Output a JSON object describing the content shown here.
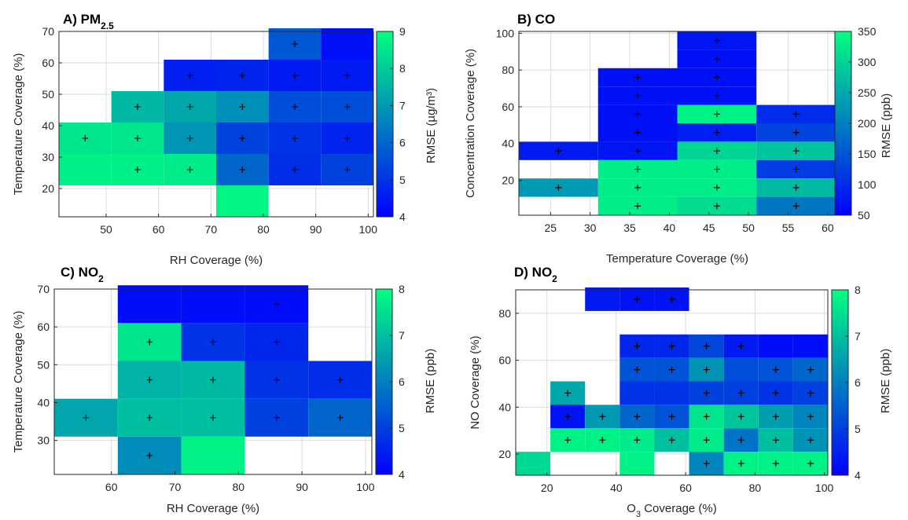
{
  "chart_data": [
    {
      "type": "heatmap",
      "title": "A) PM",
      "title_sub": "2.5",
      "xlabel": "RH Coverage (%)",
      "ylabel": "Temperature Coverage (%)",
      "colorbar_label": "RMSE (µg/m³)",
      "xlim": [
        41,
        101
      ],
      "ylim": [
        11,
        70
      ],
      "clim": [
        4,
        9
      ],
      "xticks": [
        "50",
        "60",
        "70",
        "80",
        "90",
        "100"
      ],
      "xtick_vals": [
        50,
        60,
        70,
        80,
        90,
        100
      ],
      "yticks": [
        "20",
        "30",
        "40",
        "50",
        "60",
        "70"
      ],
      "ytick_vals": [
        20,
        30,
        40,
        50,
        60,
        70
      ],
      "cticks": [
        "4",
        "5",
        "6",
        "7",
        "8",
        "9"
      ],
      "ctick_vals": [
        4,
        5,
        6,
        7,
        8,
        9
      ],
      "cells": [
        {
          "x": 46,
          "y": 36,
          "v": 8.5,
          "mark": true
        },
        {
          "x": 46,
          "y": 26,
          "v": 8.7,
          "mark": false
        },
        {
          "x": 56,
          "y": 46,
          "v": 7.6,
          "mark": true
        },
        {
          "x": 56,
          "y": 36,
          "v": 8.5,
          "mark": true
        },
        {
          "x": 56,
          "y": 26,
          "v": 8.7,
          "mark": true
        },
        {
          "x": 66,
          "y": 56,
          "v": 4.6,
          "mark": true
        },
        {
          "x": 66,
          "y": 46,
          "v": 7.3,
          "mark": true
        },
        {
          "x": 66,
          "y": 36,
          "v": 6.9,
          "mark": true
        },
        {
          "x": 66,
          "y": 26,
          "v": 8.6,
          "mark": true
        },
        {
          "x": 76,
          "y": 56,
          "v": 4.7,
          "mark": true
        },
        {
          "x": 76,
          "y": 46,
          "v": 6.8,
          "mark": true
        },
        {
          "x": 76,
          "y": 36,
          "v": 5.3,
          "mark": true
        },
        {
          "x": 76,
          "y": 26,
          "v": 6.0,
          "mark": true
        },
        {
          "x": 76,
          "y": 16,
          "v": 8.8,
          "mark": false
        },
        {
          "x": 86,
          "y": 66,
          "v": 5.7,
          "mark": true
        },
        {
          "x": 86,
          "y": 56,
          "v": 4.5,
          "mark": true
        },
        {
          "x": 86,
          "y": 46,
          "v": 5.5,
          "mark": true
        },
        {
          "x": 86,
          "y": 36,
          "v": 5.0,
          "mark": true
        },
        {
          "x": 86,
          "y": 26,
          "v": 4.9,
          "mark": true
        },
        {
          "x": 96,
          "y": 66,
          "v": 4.3,
          "mark": false
        },
        {
          "x": 96,
          "y": 56,
          "v": 4.5,
          "mark": true
        },
        {
          "x": 96,
          "y": 46,
          "v": 5.5,
          "mark": true
        },
        {
          "x": 96,
          "y": 36,
          "v": 4.7,
          "mark": true
        },
        {
          "x": 96,
          "y": 26,
          "v": 5.3,
          "mark": true
        }
      ]
    },
    {
      "type": "heatmap",
      "title": "B) CO",
      "title_sub": "",
      "xlabel": "Temperature Coverage (%)",
      "ylabel": "Concentration Coverage (%)",
      "colorbar_label": "RMSE (ppb)",
      "xlim": [
        21,
        61
      ],
      "ylim": [
        1,
        101
      ],
      "clim": [
        50,
        350
      ],
      "xticks": [
        "25",
        "30",
        "35",
        "40",
        "45",
        "50",
        "55",
        "60"
      ],
      "xtick_vals": [
        25,
        30,
        35,
        40,
        45,
        50,
        55,
        60
      ],
      "yticks": [
        "20",
        "40",
        "60",
        "80",
        "100"
      ],
      "ytick_vals": [
        20,
        40,
        60,
        80,
        100
      ],
      "cticks": [
        "50",
        "100",
        "150",
        "200",
        "250",
        "300",
        "350"
      ],
      "ctick_vals": [
        50,
        100,
        150,
        200,
        250,
        300,
        350
      ],
      "cells": [
        {
          "x": 26,
          "y": 36,
          "v": 80,
          "mark": true
        },
        {
          "x": 26,
          "y": 16,
          "v": 230,
          "mark": true
        },
        {
          "x": 36,
          "y": 76,
          "v": 70,
          "mark": true
        },
        {
          "x": 36,
          "y": 66,
          "v": 70,
          "mark": true
        },
        {
          "x": 36,
          "y": 56,
          "v": 70,
          "mark": true
        },
        {
          "x": 36,
          "y": 46,
          "v": 70,
          "mark": true
        },
        {
          "x": 36,
          "y": 36,
          "v": 75,
          "mark": true
        },
        {
          "x": 36,
          "y": 26,
          "v": 330,
          "mark": true
        },
        {
          "x": 36,
          "y": 16,
          "v": 330,
          "mark": true
        },
        {
          "x": 36,
          "y": 6,
          "v": 330,
          "mark": true
        },
        {
          "x": 46,
          "y": 96,
          "v": 75,
          "mark": true
        },
        {
          "x": 46,
          "y": 86,
          "v": 70,
          "mark": true
        },
        {
          "x": 46,
          "y": 76,
          "v": 70,
          "mark": true
        },
        {
          "x": 46,
          "y": 66,
          "v": 70,
          "mark": true
        },
        {
          "x": 46,
          "y": 56,
          "v": 335,
          "mark": true
        },
        {
          "x": 46,
          "y": 46,
          "v": 85,
          "mark": true
        },
        {
          "x": 46,
          "y": 36,
          "v": 300,
          "mark": true
        },
        {
          "x": 46,
          "y": 26,
          "v": 330,
          "mark": true
        },
        {
          "x": 46,
          "y": 16,
          "v": 330,
          "mark": true
        },
        {
          "x": 46,
          "y": 6,
          "v": 310,
          "mark": true
        },
        {
          "x": 56,
          "y": 56,
          "v": 100,
          "mark": true
        },
        {
          "x": 56,
          "y": 46,
          "v": 130,
          "mark": true
        },
        {
          "x": 56,
          "y": 36,
          "v": 280,
          "mark": true
        },
        {
          "x": 56,
          "y": 26,
          "v": 120,
          "mark": true
        },
        {
          "x": 56,
          "y": 16,
          "v": 270,
          "mark": true
        },
        {
          "x": 56,
          "y": 6,
          "v": 190,
          "mark": true
        }
      ]
    },
    {
      "type": "heatmap",
      "title": "C) NO",
      "title_sub": "2",
      "xlabel": "RH Coverage (%)",
      "ylabel": "Temperature Coverage (%)",
      "colorbar_label": "RMSE (ppb)",
      "xlim": [
        51,
        101
      ],
      "ylim": [
        21,
        70
      ],
      "clim": [
        4,
        8
      ],
      "xticks": [
        "60",
        "70",
        "80",
        "90",
        "100"
      ],
      "xtick_vals": [
        60,
        70,
        80,
        90,
        100
      ],
      "yticks": [
        "30",
        "40",
        "50",
        "60",
        "70"
      ],
      "ytick_vals": [
        30,
        40,
        50,
        60,
        70
      ],
      "cticks": [
        "4",
        "5",
        "6",
        "7",
        "8"
      ],
      "ctick_vals": [
        4,
        5,
        6,
        7,
        8
      ],
      "cells": [
        {
          "x": 56,
          "y": 36,
          "v": 6.6,
          "mark": true
        },
        {
          "x": 66,
          "y": 66,
          "v": 4.2,
          "mark": false
        },
        {
          "x": 66,
          "y": 56,
          "v": 7.6,
          "mark": true
        },
        {
          "x": 66,
          "y": 46,
          "v": 6.8,
          "mark": true
        },
        {
          "x": 66,
          "y": 36,
          "v": 7.0,
          "mark": true
        },
        {
          "x": 66,
          "y": 26,
          "v": 6.2,
          "mark": true
        },
        {
          "x": 76,
          "y": 66,
          "v": 4.2,
          "mark": false
        },
        {
          "x": 76,
          "y": 56,
          "v": 4.8,
          "mark": true
        },
        {
          "x": 76,
          "y": 46,
          "v": 6.9,
          "mark": true
        },
        {
          "x": 76,
          "y": 36,
          "v": 7.0,
          "mark": true
        },
        {
          "x": 76,
          "y": 26,
          "v": 7.8,
          "mark": false
        },
        {
          "x": 86,
          "y": 66,
          "v": 4.2,
          "mark": true
        },
        {
          "x": 86,
          "y": 56,
          "v": 4.6,
          "mark": true
        },
        {
          "x": 86,
          "y": 46,
          "v": 4.8,
          "mark": true
        },
        {
          "x": 86,
          "y": 36,
          "v": 5.0,
          "mark": true
        },
        {
          "x": 96,
          "y": 46,
          "v": 4.7,
          "mark": true
        },
        {
          "x": 96,
          "y": 36,
          "v": 5.6,
          "mark": true
        }
      ]
    },
    {
      "type": "heatmap",
      "title": "D) NO",
      "title_sub": "2",
      "xlabel": "O3 Coverage (%)",
      "xlabel_main": "O",
      "xlabel_sub": "3",
      "xlabel_rest": " Coverage (%)",
      "ylabel": "NO Coverage (%)",
      "colorbar_label": "RMSE (ppb)",
      "xlim": [
        11,
        101
      ],
      "ylim": [
        11,
        90
      ],
      "clim": [
        4,
        8
      ],
      "xticks": [
        "20",
        "40",
        "60",
        "80",
        "100"
      ],
      "xtick_vals": [
        20,
        40,
        60,
        80,
        100
      ],
      "yticks": [
        "20",
        "40",
        "60",
        "80"
      ],
      "ytick_vals": [
        20,
        40,
        60,
        80
      ],
      "cticks": [
        "4",
        "5",
        "6",
        "7",
        "8"
      ],
      "ctick_vals": [
        4,
        5,
        6,
        7,
        8
      ],
      "cells": [
        {
          "x": 16,
          "y": 16,
          "v": 7.4,
          "mark": false
        },
        {
          "x": 26,
          "y": 46,
          "v": 6.6,
          "mark": true
        },
        {
          "x": 26,
          "y": 36,
          "v": 4.3,
          "mark": true
        },
        {
          "x": 26,
          "y": 26,
          "v": 7.8,
          "mark": true
        },
        {
          "x": 36,
          "y": 86,
          "v": 4.4,
          "mark": false
        },
        {
          "x": 36,
          "y": 36,
          "v": 6.4,
          "mark": true
        },
        {
          "x": 36,
          "y": 26,
          "v": 7.8,
          "mark": true
        },
        {
          "x": 46,
          "y": 86,
          "v": 4.3,
          "mark": true
        },
        {
          "x": 46,
          "y": 66,
          "v": 4.6,
          "mark": true
        },
        {
          "x": 46,
          "y": 56,
          "v": 5.3,
          "mark": true
        },
        {
          "x": 46,
          "y": 46,
          "v": 4.8,
          "mark": false
        },
        {
          "x": 46,
          "y": 36,
          "v": 5.6,
          "mark": true
        },
        {
          "x": 46,
          "y": 26,
          "v": 7.7,
          "mark": true
        },
        {
          "x": 46,
          "y": 16,
          "v": 7.8,
          "mark": false
        },
        {
          "x": 56,
          "y": 86,
          "v": 4.3,
          "mark": true
        },
        {
          "x": 56,
          "y": 66,
          "v": 4.6,
          "mark": true
        },
        {
          "x": 56,
          "y": 56,
          "v": 5.3,
          "mark": true
        },
        {
          "x": 56,
          "y": 46,
          "v": 4.8,
          "mark": false
        },
        {
          "x": 56,
          "y": 36,
          "v": 5.3,
          "mark": true
        },
        {
          "x": 56,
          "y": 26,
          "v": 7.0,
          "mark": true
        },
        {
          "x": 66,
          "y": 66,
          "v": 5.1,
          "mark": true
        },
        {
          "x": 66,
          "y": 56,
          "v": 6.3,
          "mark": true
        },
        {
          "x": 66,
          "y": 46,
          "v": 5.0,
          "mark": true
        },
        {
          "x": 66,
          "y": 36,
          "v": 7.6,
          "mark": true
        },
        {
          "x": 66,
          "y": 26,
          "v": 7.7,
          "mark": true
        },
        {
          "x": 66,
          "y": 16,
          "v": 6.1,
          "mark": true
        },
        {
          "x": 76,
          "y": 66,
          "v": 4.4,
          "mark": true
        },
        {
          "x": 76,
          "y": 56,
          "v": 5.2,
          "mark": false
        },
        {
          "x": 76,
          "y": 46,
          "v": 5.0,
          "mark": true
        },
        {
          "x": 76,
          "y": 36,
          "v": 7.1,
          "mark": true
        },
        {
          "x": 76,
          "y": 26,
          "v": 5.8,
          "mark": true
        },
        {
          "x": 76,
          "y": 16,
          "v": 7.8,
          "mark": true
        },
        {
          "x": 86,
          "y": 66,
          "v": 4.2,
          "mark": false
        },
        {
          "x": 86,
          "y": 56,
          "v": 5.3,
          "mark": true
        },
        {
          "x": 86,
          "y": 46,
          "v": 4.8,
          "mark": true
        },
        {
          "x": 86,
          "y": 36,
          "v": 6.5,
          "mark": true
        },
        {
          "x": 86,
          "y": 26,
          "v": 7.0,
          "mark": true
        },
        {
          "x": 86,
          "y": 16,
          "v": 7.8,
          "mark": true
        },
        {
          "x": 96,
          "y": 66,
          "v": 4.2,
          "mark": false
        },
        {
          "x": 96,
          "y": 56,
          "v": 5.6,
          "mark": true
        },
        {
          "x": 96,
          "y": 46,
          "v": 5.0,
          "mark": true
        },
        {
          "x": 96,
          "y": 36,
          "v": 6.1,
          "mark": true
        },
        {
          "x": 96,
          "y": 26,
          "v": 6.3,
          "mark": true
        },
        {
          "x": 96,
          "y": 16,
          "v": 7.8,
          "mark": true
        }
      ]
    }
  ],
  "colormap": {
    "low": "#0000ff",
    "high": "#00ff80"
  }
}
